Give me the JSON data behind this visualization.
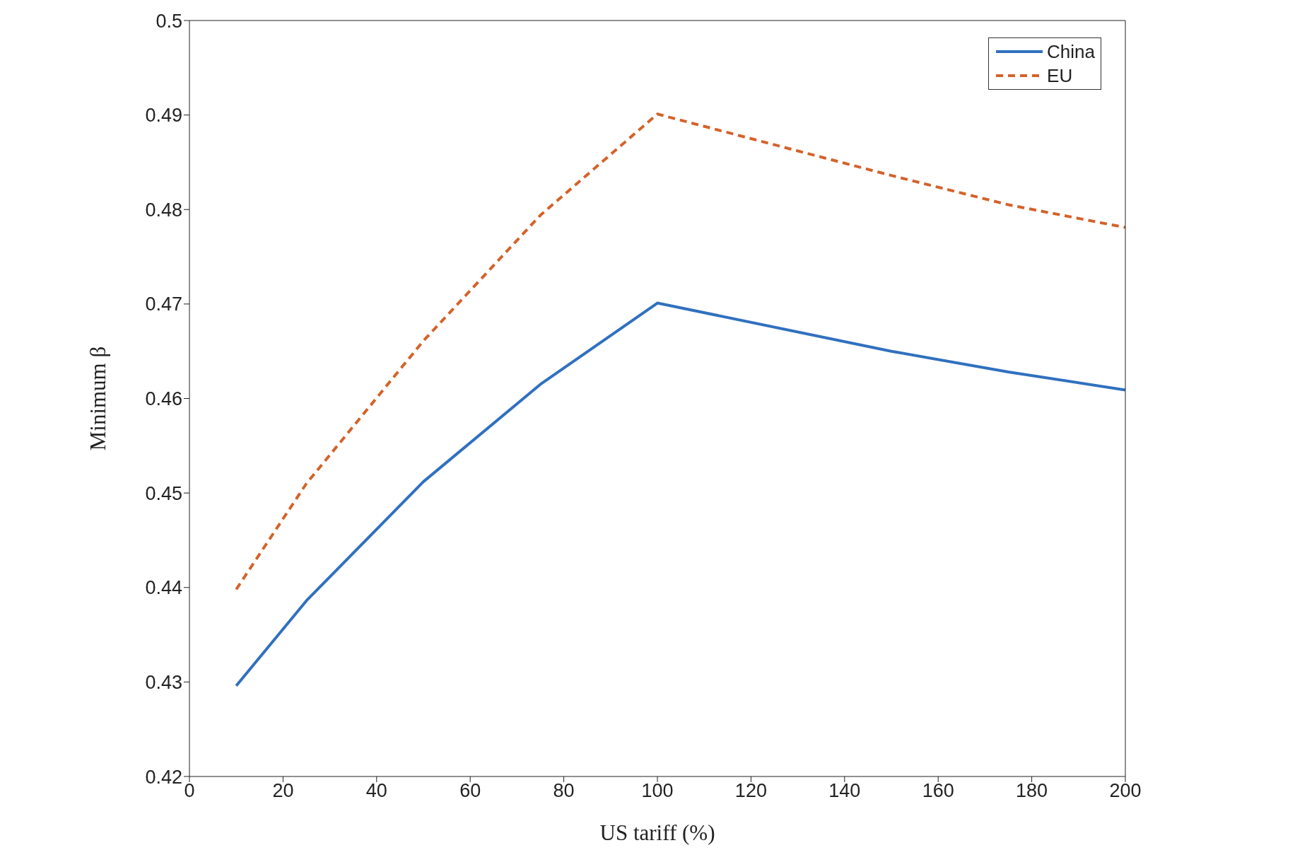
{
  "chart_data": {
    "type": "line",
    "xlabel": "US tariff (%)",
    "ylabel": "Minimum β",
    "x": [
      10,
      25,
      50,
      75,
      100,
      150,
      175,
      200
    ],
    "series": [
      {
        "name": "China",
        "color": "#3070bf",
        "line_style": "solid",
        "values": [
          0.4296,
          0.4386,
          0.4512,
          0.4615,
          0.4701,
          0.465,
          0.4628,
          0.4609
        ]
      },
      {
        "name": "EU",
        "color": "#d4622a",
        "line_style": "dashed",
        "values": [
          0.4398,
          0.451,
          0.4661,
          0.4794,
          0.4901,
          0.4836,
          0.4805,
          0.4781
        ]
      }
    ],
    "xlim": [
      0,
      200
    ],
    "xticks": [
      0,
      20,
      40,
      60,
      80,
      100,
      120,
      140,
      160,
      180,
      200
    ],
    "ylim": [
      0.42,
      0.5
    ],
    "yticks": [
      0.42,
      0.43,
      0.44,
      0.45,
      0.46,
      0.47,
      0.48,
      0.49,
      0.5
    ],
    "grid": false,
    "legend": "top right",
    "marker": "none"
  }
}
